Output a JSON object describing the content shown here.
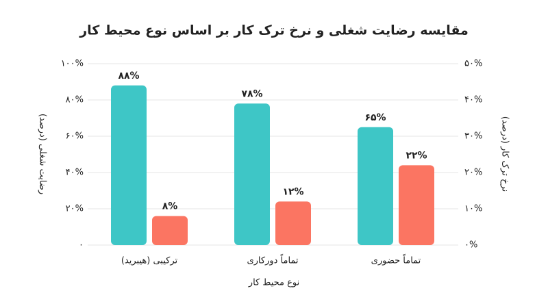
{
  "chart_data": {
    "type": "bar",
    "title": "مقایسه رضایت شغلی و نرخ ترک کار بر اساس نوع محیط کار",
    "x_label": "نوع محیط کار",
    "y_label": "رضایت شغلی (درصد)",
    "y2_label": "نرخ ترک کار (درصد)",
    "categories": [
      "تماماً حضوری",
      "تماماً دورکاری",
      "ترکیبی (هیبرید)"
    ],
    "series": [
      {
        "color": "#3ec6c6",
        "values": [
          65,
          78,
          88
        ],
        "value_labels": [
          "۶۵%",
          "۷۸%",
          "۸۸%"
        ]
      },
      {
        "color": "#fb7562",
        "axis": "y2",
        "values": [
          22,
          12,
          8
        ],
        "value_labels": [
          "۲۲%",
          "۱۲%",
          "۸%"
        ]
      }
    ],
    "ylim": [
      0,
      100
    ],
    "yticks": [
      {
        "value": 0,
        "label": "۰"
      },
      {
        "value": 20,
        "label": "۲۰%"
      },
      {
        "value": 40,
        "label": "۴۰%"
      },
      {
        "value": 60,
        "label": "۶۰%"
      },
      {
        "value": 80,
        "label": "۸۰%"
      },
      {
        "value": 100,
        "label": "۱۰۰%"
      }
    ],
    "y2lim": [
      0,
      50
    ],
    "y2ticks": [
      {
        "value": 0,
        "label": "۰%"
      },
      {
        "value": 10,
        "label": "۱۰%"
      },
      {
        "value": 20,
        "label": "۲۰%"
      },
      {
        "value": 30,
        "label": "۳۰%"
      },
      {
        "value": 40,
        "label": "۴۰%"
      },
      {
        "value": 50,
        "label": "۵۰%"
      }
    ],
    "grid": true,
    "direction": "rtl"
  }
}
